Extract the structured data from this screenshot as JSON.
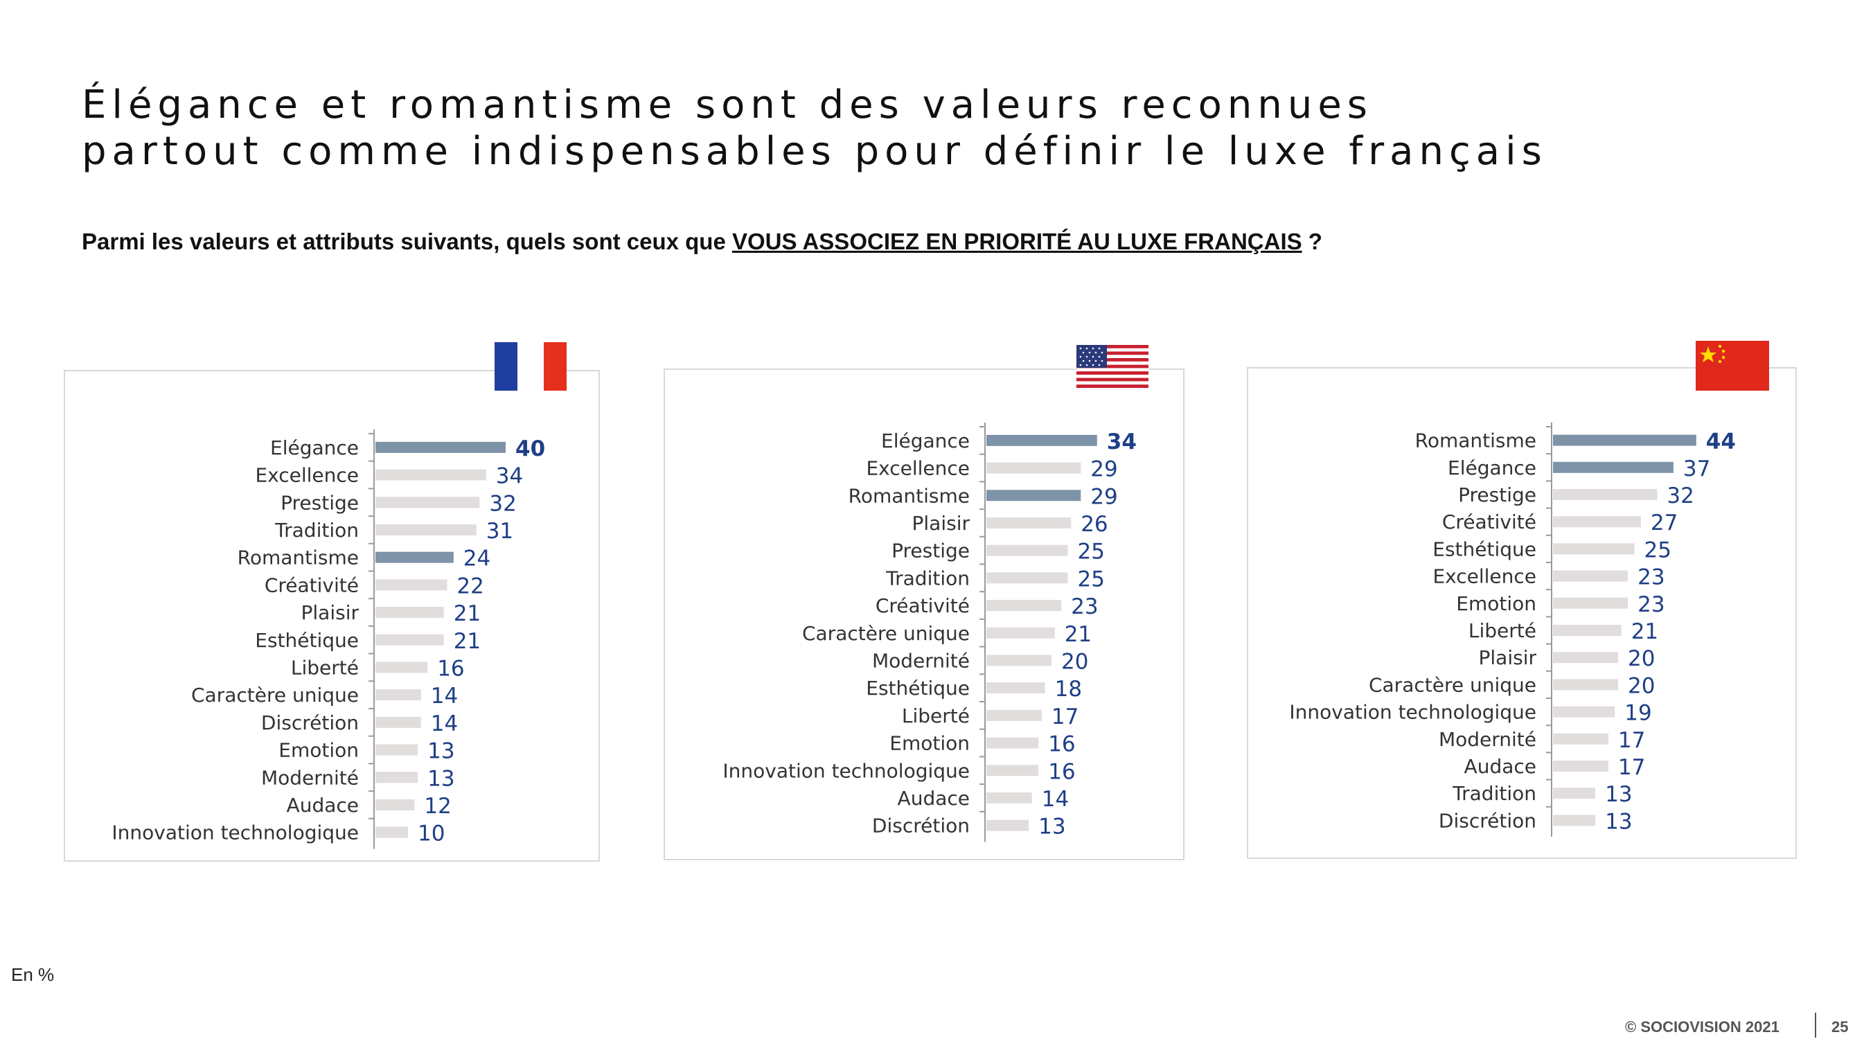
{
  "title": {
    "line1": "Élégance et romantisme sont des valeurs reconnues",
    "line2": "partout comme indispensables pour définir le luxe français"
  },
  "question": {
    "before": "Parmi les valeurs et attributs suivants, quels sont ceux que ",
    "highlight": "VOUS ASSOCIEZ EN PRIORITÉ AU LUXE FRANÇAIS",
    "after": " ?"
  },
  "colors": {
    "highlight_bar": "#7e93a8",
    "other_bar": "#e2dddd",
    "value_text": "#1f3f86",
    "label_text": "#333333"
  },
  "flags": [
    "france-flag-icon",
    "usa-flag-icon",
    "china-flag-icon"
  ],
  "chart_data": [
    {
      "type": "bar",
      "orientation": "horizontal",
      "categories": [
        "Elégance",
        "Excellence",
        "Prestige",
        "Tradition",
        "Romantisme",
        "Créativité",
        "Plaisir",
        "Esthétique",
        "Liberté",
        "Caractère unique",
        "Discrétion",
        "Emotion",
        "Modernité",
        "Audace",
        "Innovation technologique"
      ],
      "values": [
        40,
        34,
        32,
        31,
        24,
        22,
        21,
        21,
        16,
        14,
        14,
        13,
        13,
        12,
        10
      ],
      "highlighted": [
        "Elégance",
        "Romantisme"
      ],
      "bold_value": "Elégance"
    },
    {
      "type": "bar",
      "orientation": "horizontal",
      "categories": [
        "Elégance",
        "Excellence",
        "Romantisme",
        "Plaisir",
        "Prestige",
        "Tradition",
        "Créativité",
        "Caractère unique",
        "Modernité",
        "Esthétique",
        "Liberté",
        "Emotion",
        "Innovation technologique",
        "Audace",
        "Discrétion"
      ],
      "values": [
        34,
        29,
        29,
        26,
        25,
        25,
        23,
        21,
        20,
        18,
        17,
        16,
        16,
        14,
        13
      ],
      "highlighted": [
        "Elégance",
        "Romantisme"
      ],
      "bold_value": "Elégance"
    },
    {
      "type": "bar",
      "orientation": "horizontal",
      "categories": [
        "Romantisme",
        "Elégance",
        "Prestige",
        "Créativité",
        "Esthétique",
        "Excellence",
        "Emotion",
        "Liberté",
        "Plaisir",
        "Caractère unique",
        "Innovation technologique",
        "Modernité",
        "Audace",
        "Tradition",
        "Discrétion"
      ],
      "values": [
        44,
        37,
        32,
        27,
        25,
        23,
        23,
        21,
        20,
        20,
        19,
        17,
        17,
        13,
        13
      ],
      "highlighted": [
        "Romantisme",
        "Elégance"
      ],
      "bold_value": "Romantisme"
    }
  ],
  "footer": {
    "unit_note": "En %",
    "copyright": "© SOCIOVISION 2021",
    "page_number": "25"
  }
}
